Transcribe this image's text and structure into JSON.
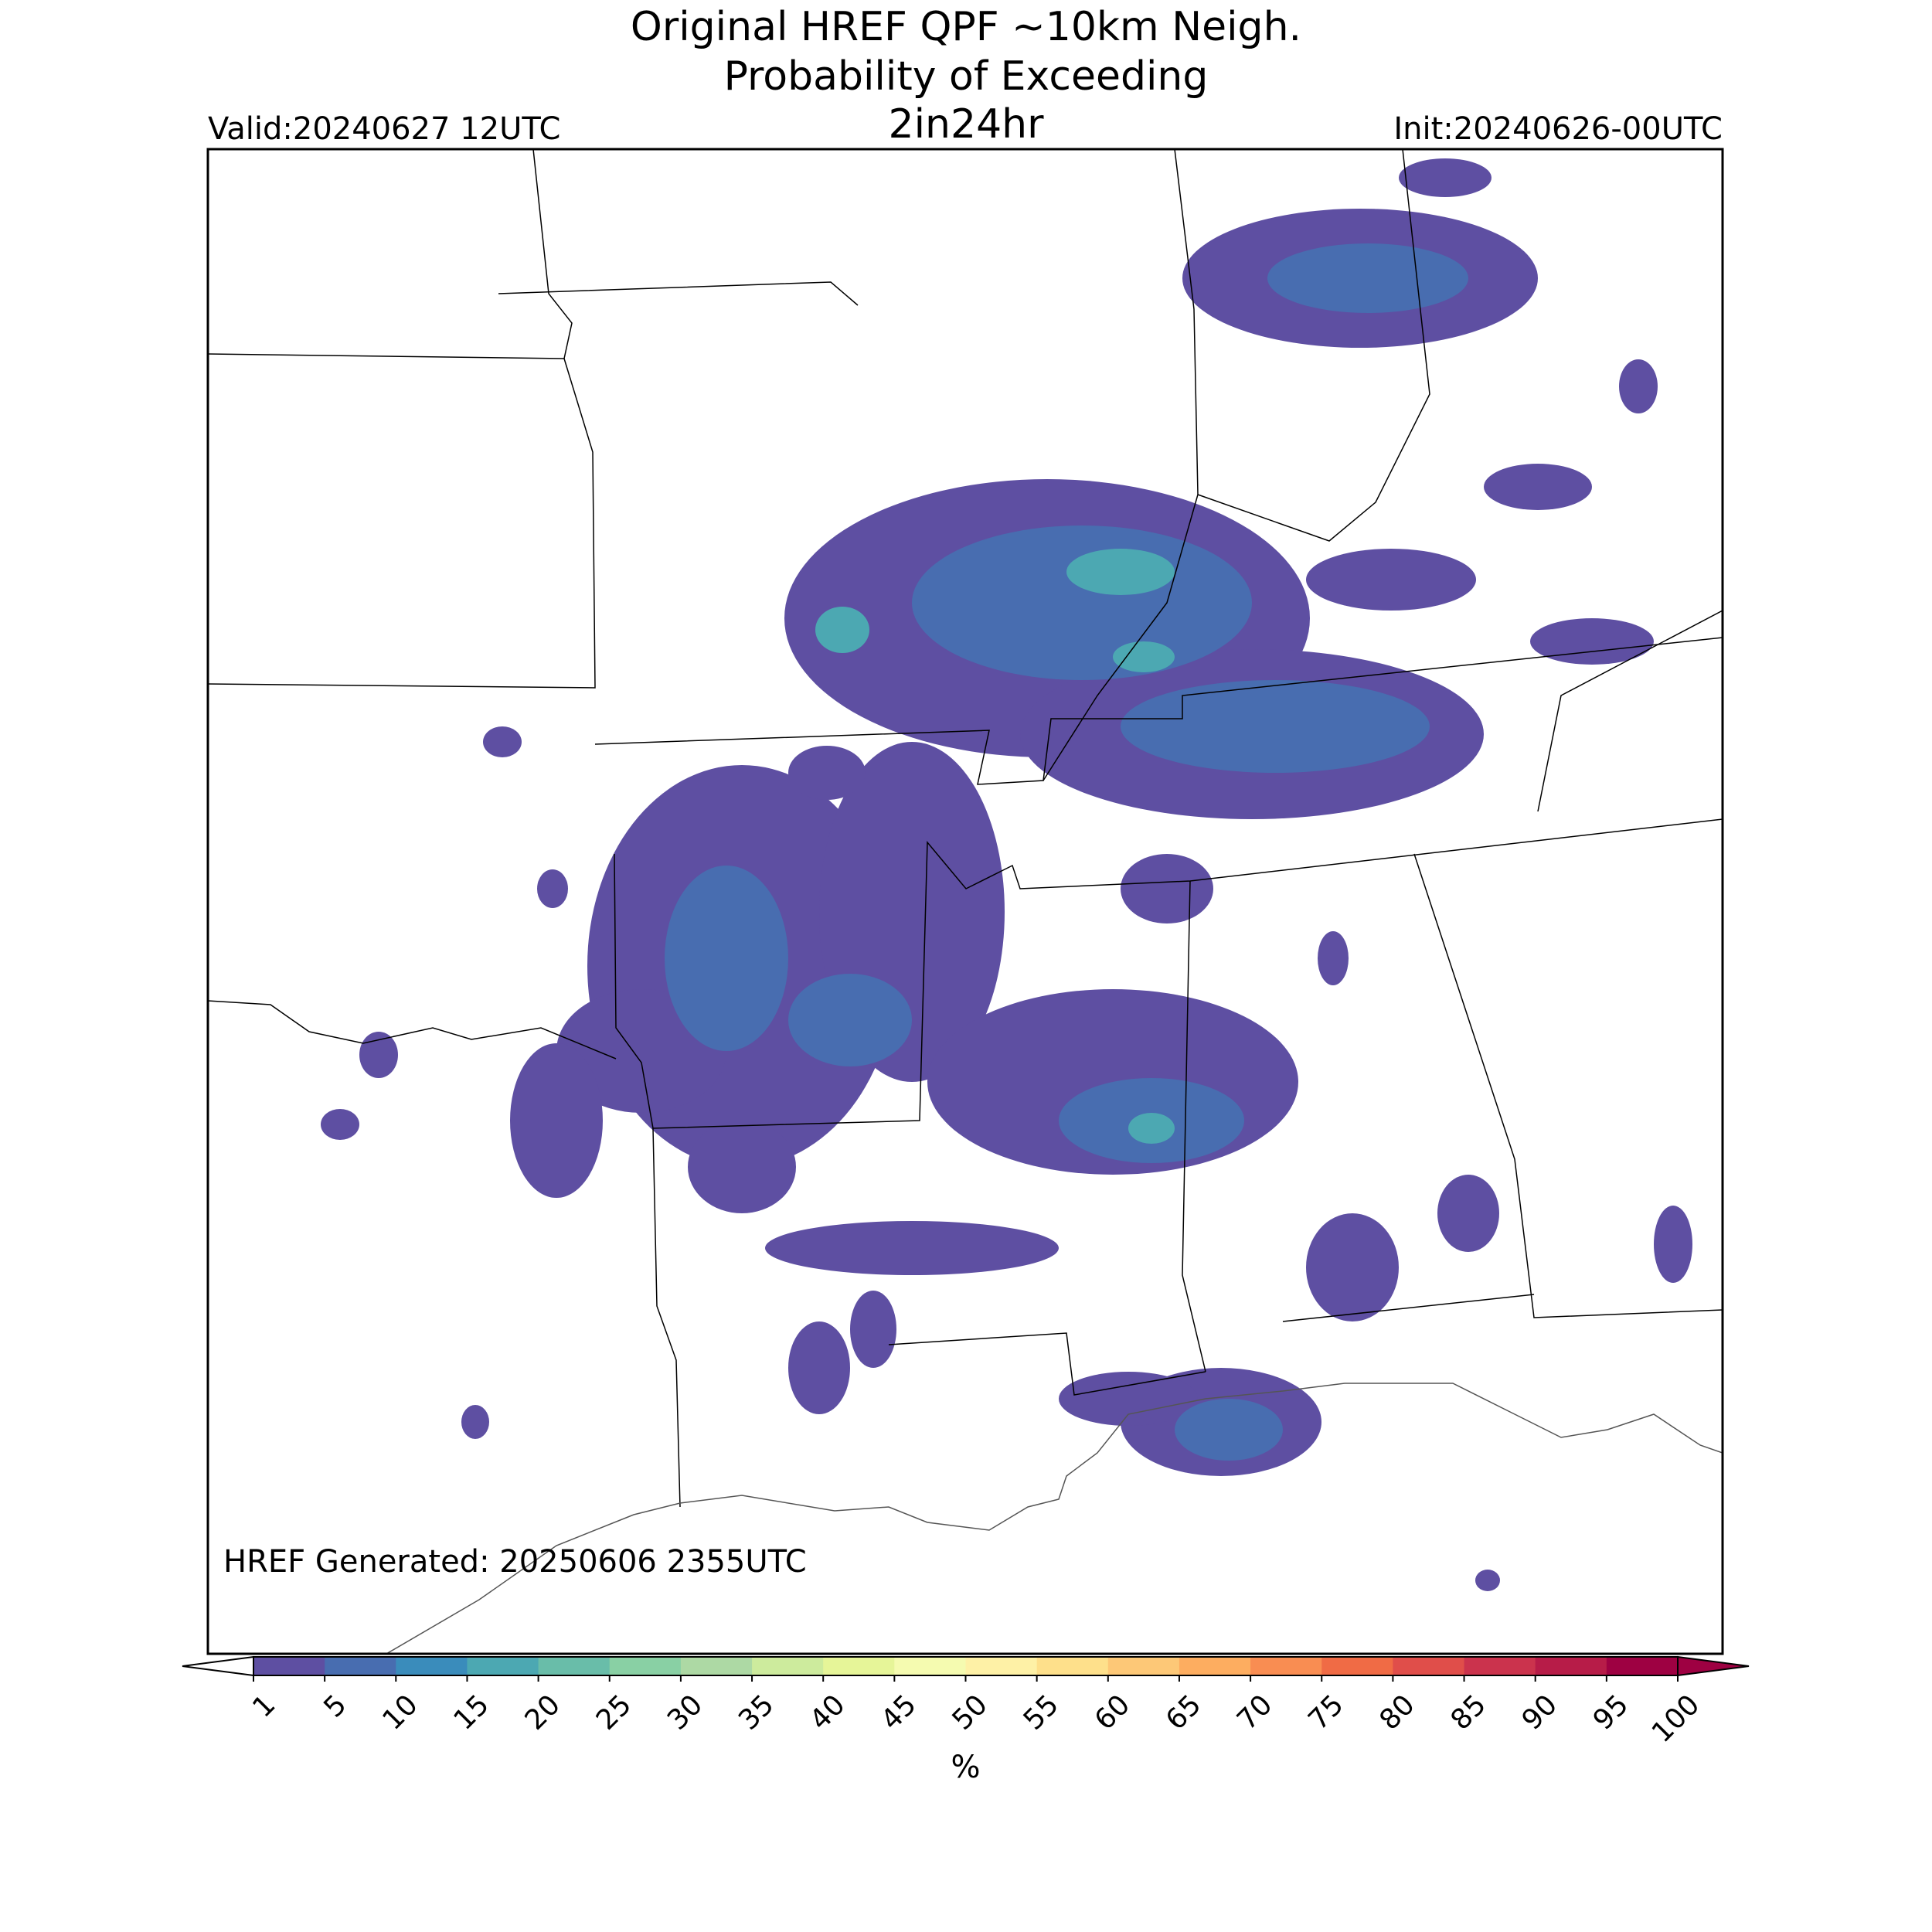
{
  "header": {
    "title": [
      "Original HREF QPF ~10km Neigh.",
      "Probability of Exceeding",
      "2in24hr"
    ],
    "valid": "Valid:20240627 12UTC",
    "init": "Init:20240626-00UTC"
  },
  "map": {
    "footer": "HREF Generated: 20250606 2355UTC"
  },
  "colorbar": {
    "ticks": [
      1,
      5,
      10,
      15,
      20,
      25,
      30,
      35,
      40,
      45,
      50,
      55,
      60,
      65,
      70,
      75,
      80,
      85,
      90,
      95,
      100
    ],
    "colors": [
      "#5e4fa2",
      "#486db0",
      "#3a8cbb",
      "#4ca8b2",
      "#69bda9",
      "#89d0a4",
      "#add9a4",
      "#cdeb9d",
      "#e6f598",
      "#f5fbb0",
      "#fef1a6",
      "#fee08b",
      "#fdc877",
      "#fdad60",
      "#f98d52",
      "#f06b45",
      "#e04e4a",
      "#cb334d",
      "#b71c48",
      "#9e0142"
    ],
    "under_color": "#ffffff",
    "over_color": "#9e0142",
    "label": "%"
  }
}
